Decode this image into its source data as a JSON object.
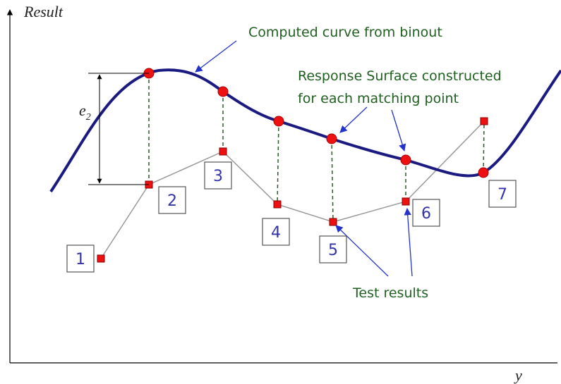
{
  "axes": {
    "y_label": "Result",
    "x_label": "y"
  },
  "annotations": {
    "curve": "Computed curve from binout",
    "surface_line1": "Response Surface constructed",
    "surface_line2": "for each matching point",
    "tests": "Test results"
  },
  "error": {
    "main": "e",
    "sub": "2"
  },
  "points": [
    "1",
    "2",
    "3",
    "4",
    "5",
    "6",
    "7"
  ]
}
